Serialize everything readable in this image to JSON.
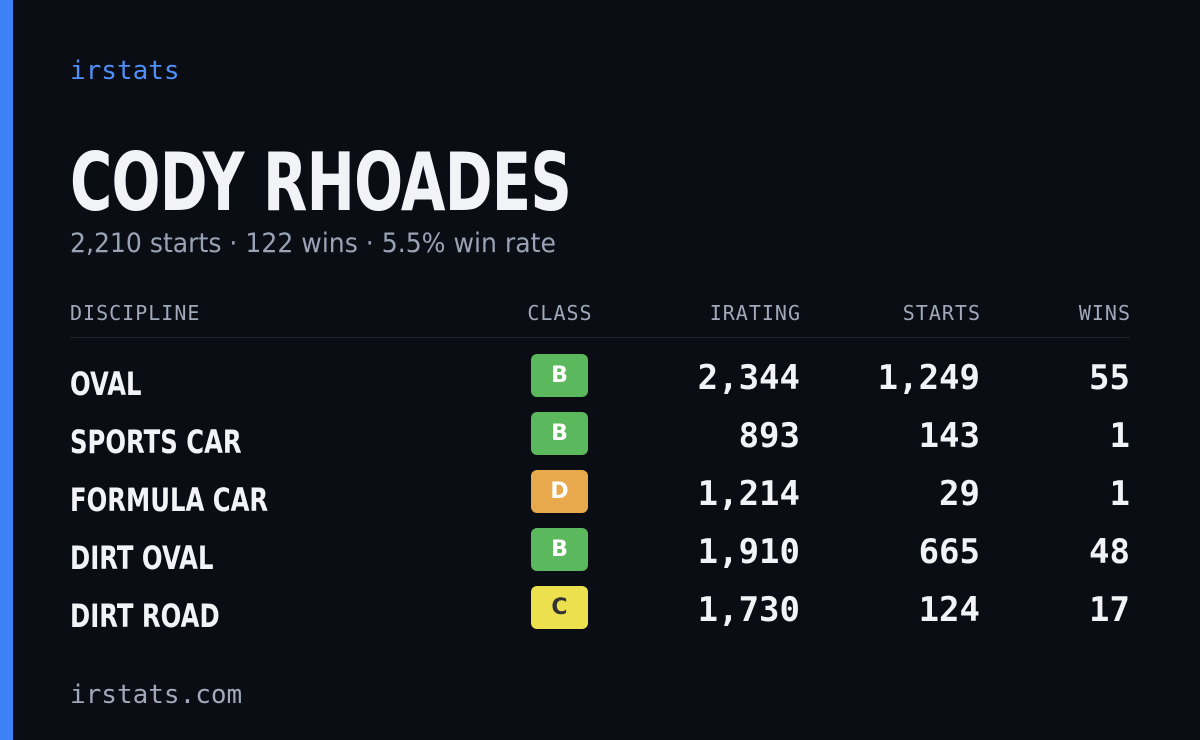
{
  "brand": "irstats",
  "profile": {
    "name": "CODY RHOADES",
    "summary": "2,210 starts · 122 wins · 5.5% win rate"
  },
  "table": {
    "headers": [
      "DISCIPLINE",
      "CLASS",
      "IRATING",
      "STARTS",
      "WINS"
    ],
    "rows": [
      [
        "OVAL",
        "B",
        "2,344",
        "1,249",
        "55"
      ],
      [
        "SPORTS CAR",
        "B",
        "893",
        "143",
        "1"
      ],
      [
        "FORMULA CAR",
        "D",
        "1,214",
        "29",
        "1"
      ],
      [
        "DIRT OVAL",
        "B",
        "1,910",
        "665",
        "48"
      ],
      [
        "DIRT ROAD",
        "C",
        "1,730",
        "124",
        "17"
      ]
    ]
  },
  "footer": "irstats.com"
}
